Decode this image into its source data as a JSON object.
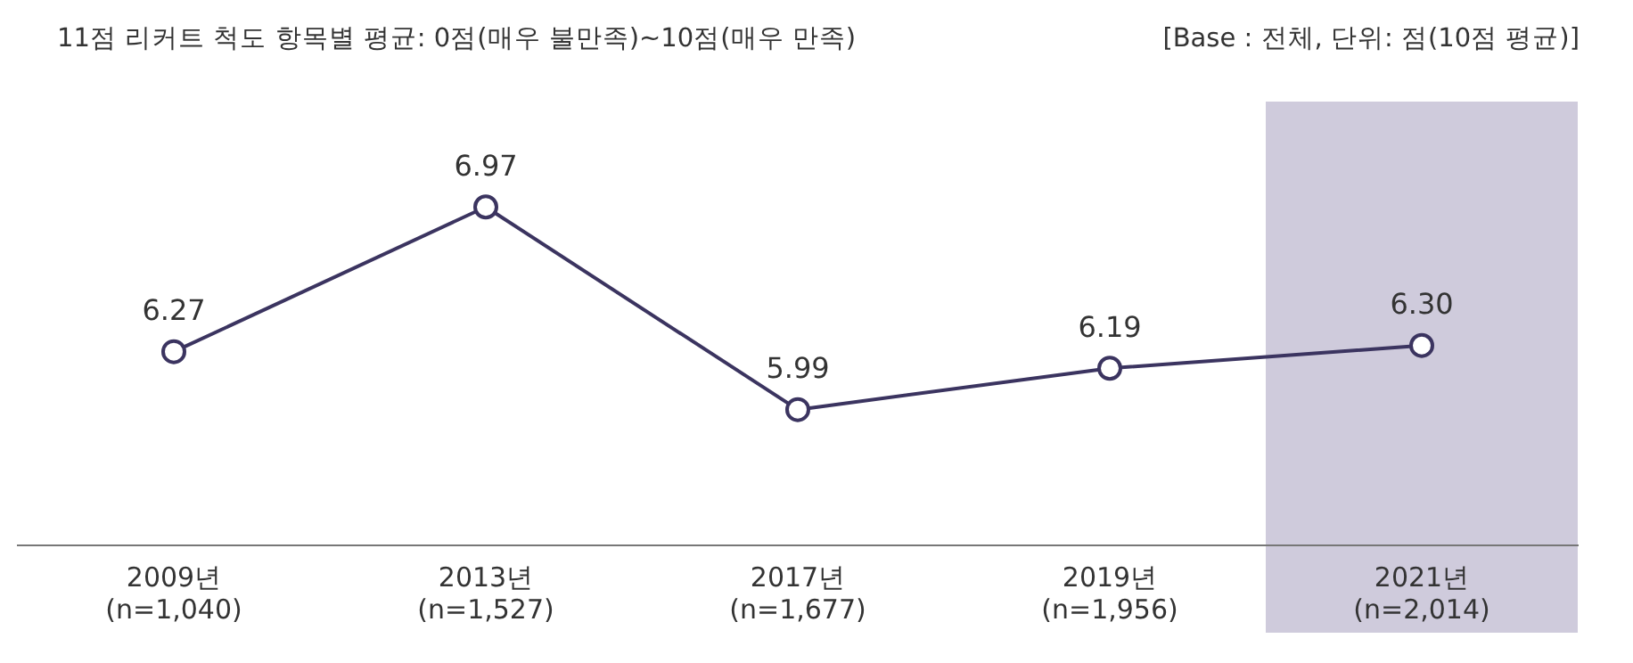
{
  "chart_data": {
    "type": "line",
    "title": "11점 리커트 척도 항목별 평균: 0점(매우 불만족)~10점(매우 만족)",
    "annotations": [
      "[Base : 전체, 단위: 점(10점 평균)]"
    ],
    "categories": [
      "2009년\n(n=1,040)",
      "2013년\n(n=1,527)",
      "2017년\n(n=1,677)",
      "2019년\n(n=1,956)",
      "2021년\n(n=2,014)"
    ],
    "series": [
      {
        "color": "#3b3460",
        "values": [
          6.27,
          6.97,
          5.99,
          6.19,
          6.3
        ],
        "value_labels": [
          "6.27",
          "6.97",
          "5.99",
          "6.19",
          "6.30"
        ]
      }
    ],
    "bands": [
      {
        "axis": "x",
        "from": "2021년\n(n=2,014)",
        "to": "2021년\n(n=2,014)",
        "color": "#cfcbdc"
      }
    ],
    "marker": "circle",
    "grid": false,
    "legend": false
  }
}
